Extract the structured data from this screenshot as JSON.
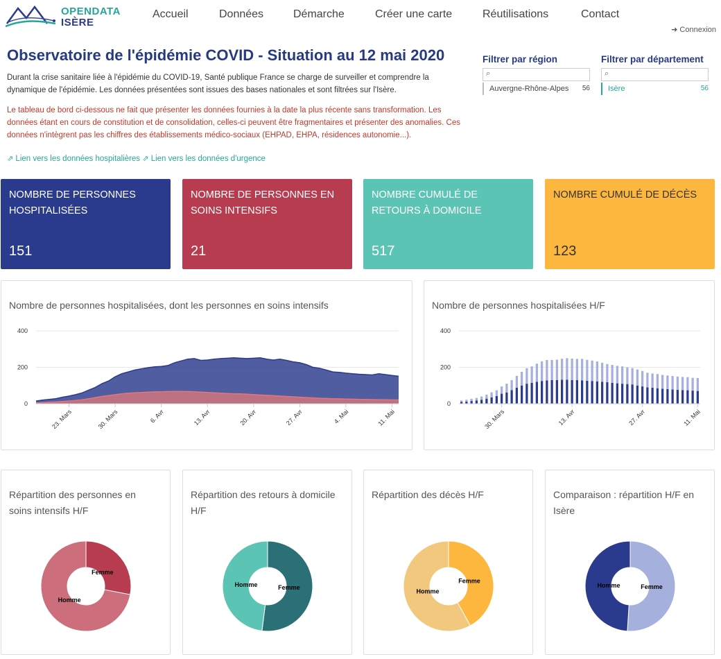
{
  "nav": {
    "logo_line1": "OPENDATA",
    "logo_line2": "ISÈRE",
    "items": [
      "Accueil",
      "Données",
      "Démarche",
      "Créer une carte",
      "Réutilisations",
      "Contact"
    ],
    "connexion": "Connexion"
  },
  "header": {
    "title": "Observatoire de l'épidémie COVID - Situation au 12 mai 2020",
    "intro": "Durant la crise sanitaire liée à l'épidémie du COVID-19, Santé publique France se charge de surveiller et comprendre la dynamique de l'épidémie. Les données présentées sont issues des bases nationales et sont filtrées sur l'Isère.",
    "warning": "Le tableau de bord ci-dessous ne fait que présenter les données fournies à la date la plus récente sans transformation. Les données étant en cours de constitution et de consolidation, celles-ci peuvent être fragmentaires et présenter des anomalies. Ces données n'intègrent pas les chiffres des établissements médico-sociaux (EHPAD, EHPA, résidences autonomie...).",
    "link_hosp": "Lien vers les données hospitalières",
    "link_urg": "Lien vers les données d'urgence"
  },
  "filters": {
    "region": {
      "title": "Filtrer par région",
      "search_value": "",
      "item_label": "Auvergne-Rhône-Alpes",
      "item_count": "56"
    },
    "departement": {
      "title": "Filtrer par département",
      "search_value": "",
      "item_label": "Isère",
      "item_count": "56"
    }
  },
  "kpis": [
    {
      "title": "Nombre de personnes hospitalisées",
      "value": "151",
      "color": "#2a3a8c"
    },
    {
      "title": "Nombre de personnes en soins intensifs",
      "value": "21",
      "color": "#b83c50"
    },
    {
      "title": "Nombre cumulé de retours à domicile",
      "value": "517",
      "color": "#5cc4b4"
    },
    {
      "title": "Nombre cumulé de décès",
      "value": "123",
      "color": "#fdb73e"
    }
  ],
  "chart_data": [
    {
      "type": "area",
      "title": "Nombre de personnes hospitalisées, dont les personnes en soins intensifs",
      "x_start": "2020-03-18",
      "x_end": "2020-05-12",
      "xticks": [
        "23. Mars",
        "30. Mars",
        "6. Avr",
        "13. Avr",
        "20. Avr",
        "27. Avr",
        "4. Mai",
        "11. Mai"
      ],
      "yticks": [
        "0",
        "200",
        "400"
      ],
      "ylim": [
        0,
        400
      ],
      "series": [
        {
          "name": "Hospitalisées",
          "color": "#2a3a8c",
          "values": [
            15,
            20,
            24,
            28,
            36,
            42,
            50,
            60,
            75,
            90,
            110,
            125,
            148,
            165,
            175,
            185,
            192,
            198,
            203,
            205,
            210,
            225,
            235,
            245,
            248,
            238,
            240,
            245,
            248,
            250,
            252,
            250,
            248,
            250,
            252,
            245,
            240,
            245,
            238,
            230,
            225,
            215,
            200,
            195,
            185,
            175,
            172,
            168,
            165,
            162,
            160,
            158,
            165,
            160,
            155,
            151
          ]
        },
        {
          "name": "Soins intensifs",
          "color": "#e07878",
          "values": [
            4,
            6,
            8,
            10,
            12,
            15,
            18,
            22,
            28,
            34,
            40,
            45,
            50,
            54,
            58,
            60,
            62,
            64,
            65,
            66,
            67,
            68,
            68,
            67,
            66,
            64,
            62,
            60,
            58,
            56,
            55,
            54,
            52,
            50,
            48,
            46,
            44,
            42,
            40,
            38,
            36,
            34,
            32,
            30,
            29,
            28,
            27,
            26,
            25,
            24,
            24,
            23,
            22,
            22,
            21,
            21
          ]
        }
      ]
    },
    {
      "type": "bar",
      "title": "Nombre de personnes hospitalisées H/F",
      "stacked": true,
      "xticks": [
        "30. Mars",
        "13. Avr",
        "27. Avr",
        "11. Mai"
      ],
      "yticks": [
        "0",
        "200",
        "400"
      ],
      "ylim": [
        0,
        400
      ],
      "series": [
        {
          "name": "Homme",
          "color": "#2a3a8c",
          "values": [
            10,
            12,
            15,
            18,
            22,
            28,
            35,
            42,
            55,
            62,
            75,
            88,
            100,
            110,
            115,
            120,
            125,
            128,
            130,
            130,
            132,
            132,
            130,
            130,
            128,
            126,
            125,
            122,
            120,
            118,
            115,
            112,
            110,
            108,
            106,
            100,
            95,
            90,
            88,
            85,
            82,
            80,
            78,
            76,
            75,
            74,
            72,
            70
          ]
        },
        {
          "name": "Femme",
          "color": "#a6b0dd",
          "values": [
            8,
            10,
            12,
            14,
            18,
            22,
            28,
            32,
            40,
            48,
            55,
            65,
            75,
            85,
            90,
            100,
            108,
            112,
            110,
            112,
            115,
            118,
            118,
            116,
            118,
            115,
            112,
            110,
            105,
            100,
            98,
            96,
            95,
            92,
            90,
            88,
            85,
            80,
            78,
            78,
            76,
            75,
            74,
            73,
            72,
            72,
            70,
            71
          ]
        }
      ]
    },
    {
      "type": "pie",
      "title": "Répartition des personnes en soins intensifs H/F",
      "categories": [
        "Femme",
        "Homme"
      ],
      "values": [
        28,
        72
      ],
      "colors": [
        "#b83c50",
        "#cc6e7c"
      ]
    },
    {
      "type": "pie",
      "title": "Répartition des retours à domicile H/F",
      "categories": [
        "Femme",
        "Homme"
      ],
      "values": [
        52,
        48
      ],
      "colors": [
        "#2b6f77",
        "#5cc4b4"
      ]
    },
    {
      "type": "pie",
      "title": "Répartition des décès H/F",
      "categories": [
        "Femme",
        "Homme"
      ],
      "values": [
        42,
        58
      ],
      "colors": [
        "#fdb73e",
        "#f2c77e"
      ]
    },
    {
      "type": "pie",
      "title": "Comparaison : répartition H/F en Isère",
      "categories": [
        "Femme",
        "Homme"
      ],
      "values": [
        51,
        49
      ],
      "colors": [
        "#a6b0dd",
        "#2a3a8c"
      ]
    }
  ]
}
